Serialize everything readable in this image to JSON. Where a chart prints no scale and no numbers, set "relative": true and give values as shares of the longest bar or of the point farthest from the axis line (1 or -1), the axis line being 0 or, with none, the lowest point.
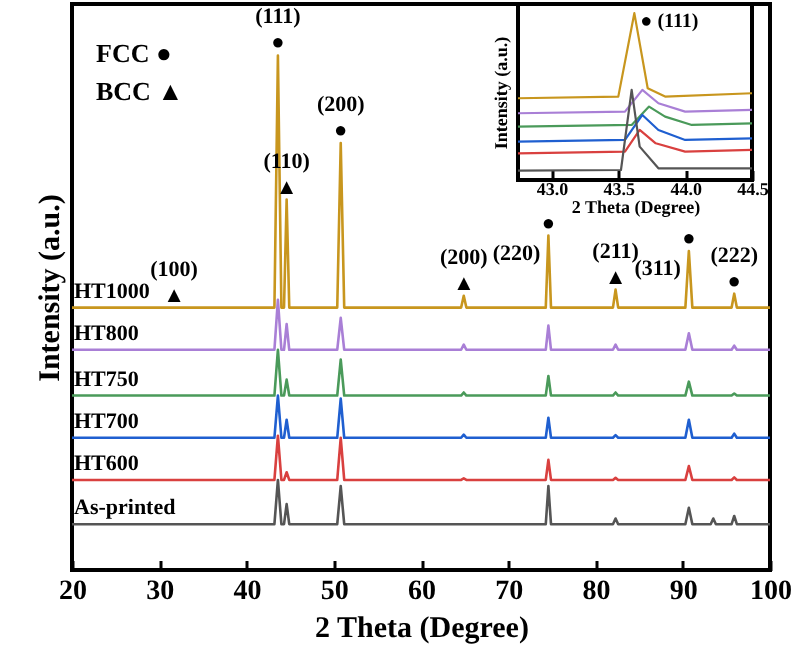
{
  "chart_data": [
    {
      "type": "line",
      "relative": true,
      "xlabel": "2 Theta (Degree)",
      "ylabel": "Intensity (a.u.)",
      "xlim": [
        20,
        100
      ],
      "xticks": [
        20,
        30,
        40,
        50,
        60,
        70,
        80,
        90,
        100
      ],
      "x": [
        20,
        43.2,
        43.6,
        44.0,
        44.3,
        44.6,
        44.9,
        50.4,
        50.8,
        51.2,
        64.6,
        64.9,
        65.2,
        74.3,
        74.6,
        74.9,
        82.0,
        82.3,
        82.6,
        90.3,
        90.7,
        91.1,
        93.2,
        93.5,
        93.8,
        95.6,
        95.9,
        96.2,
        100
      ],
      "series": [
        {
          "name": "HT1000",
          "color": "#c8961e",
          "values": [
            0.51,
            0.51,
            1.0,
            0.51,
            0.51,
            0.72,
            0.51,
            0.51,
            0.83,
            0.51,
            0.51,
            0.533,
            0.51,
            0.51,
            0.65,
            0.51,
            0.51,
            0.545,
            0.51,
            0.51,
            0.62,
            0.51,
            0.51,
            0.51,
            0.51,
            0.51,
            0.537,
            0.51,
            0.51
          ]
        },
        {
          "name": "HT800",
          "color": "#a97fd6",
          "values": [
            0.428,
            0.428,
            0.525,
            0.428,
            0.428,
            0.478,
            0.428,
            0.428,
            0.49,
            0.428,
            0.428,
            0.438,
            0.428,
            0.428,
            0.475,
            0.428,
            0.428,
            0.438,
            0.428,
            0.428,
            0.46,
            0.428,
            0.428,
            0.428,
            0.428,
            0.428,
            0.436,
            0.428,
            0.428
          ]
        },
        {
          "name": "HT750",
          "color": "#4a9a5a",
          "values": [
            0.339,
            0.339,
            0.428,
            0.339,
            0.339,
            0.37,
            0.339,
            0.339,
            0.409,
            0.339,
            0.339,
            0.345,
            0.339,
            0.339,
            0.377,
            0.339,
            0.339,
            0.345,
            0.339,
            0.339,
            0.366,
            0.339,
            0.339,
            0.339,
            0.339,
            0.339,
            0.343,
            0.339,
            0.339
          ]
        },
        {
          "name": "HT700",
          "color": "#1f5fd0",
          "values": [
            0.257,
            0.257,
            0.339,
            0.257,
            0.257,
            0.292,
            0.257,
            0.257,
            0.333,
            0.257,
            0.257,
            0.263,
            0.257,
            0.257,
            0.296,
            0.257,
            0.257,
            0.262,
            0.257,
            0.257,
            0.292,
            0.257,
            0.257,
            0.257,
            0.257,
            0.257,
            0.265,
            0.257,
            0.257
          ]
        },
        {
          "name": "HT600",
          "color": "#d9403f",
          "values": [
            0.175,
            0.175,
            0.261,
            0.175,
            0.175,
            0.19,
            0.175,
            0.175,
            0.257,
            0.175,
            0.175,
            0.178,
            0.175,
            0.175,
            0.214,
            0.175,
            0.175,
            0.179,
            0.175,
            0.175,
            0.202,
            0.175,
            0.175,
            0.175,
            0.175,
            0.175,
            0.18,
            0.175,
            0.175
          ]
        },
        {
          "name": "As-printed",
          "color": "#555555",
          "values": [
            0.089,
            0.089,
            0.175,
            0.089,
            0.089,
            0.128,
            0.089,
            0.089,
            0.163,
            0.089,
            0.089,
            0.089,
            0.089,
            0.089,
            0.163,
            0.089,
            0.089,
            0.1,
            0.089,
            0.089,
            0.121,
            0.089,
            0.089,
            0.1,
            0.089,
            0.089,
            0.105,
            0.089,
            0.089
          ]
        }
      ],
      "annotations": [
        "FCC ●",
        "BCC ▲",
        {
          "text": "●",
          "x": 43.6,
          "y": 1.0
        },
        {
          "text": "(111)",
          "x": 43.6,
          "y": 1.0
        },
        {
          "text": "▲",
          "x": 44.6,
          "y": 0.72
        },
        {
          "text": "(110)",
          "x": 44.6,
          "y": 0.72
        },
        {
          "text": "●",
          "x": 50.8,
          "y": 0.83
        },
        {
          "text": "(200)",
          "x": 50.8,
          "y": 0.83
        },
        {
          "text": "▲",
          "x": 31.7,
          "y": 0.51
        },
        {
          "text": "(100)",
          "x": 31.7,
          "y": 0.51
        },
        {
          "text": "▲",
          "x": 64.9,
          "y": 0.533
        },
        {
          "text": "(200)",
          "x": 64.9,
          "y": 0.533
        },
        {
          "text": "●",
          "x": 74.6,
          "y": 0.65
        },
        {
          "text": "(220)",
          "x": 74.6,
          "y": 0.65
        },
        {
          "text": "▲",
          "x": 82.3,
          "y": 0.545
        },
        {
          "text": "(211)",
          "x": 82.3,
          "y": 0.545
        },
        {
          "text": "●",
          "x": 90.7,
          "y": 0.62
        },
        {
          "text": "(311)",
          "x": 90.7,
          "y": 0.62
        },
        {
          "text": "●",
          "x": 95.9,
          "y": 0.537
        },
        {
          "text": "(222)",
          "x": 95.9,
          "y": 0.537
        }
      ]
    },
    {
      "type": "line",
      "relative": true,
      "xlabel": "2 Theta (Degree)",
      "ylabel": "Intensity (a.u.)",
      "xlim": [
        42.75,
        44.5
      ],
      "xticks": [
        {
          "value": 43,
          "label": "43.0"
        },
        {
          "value": 43.5,
          "label": "43.5"
        },
        {
          "value": 44,
          "label": "44.0"
        },
        {
          "value": 44.5,
          "label": "44.5"
        }
      ],
      "series": [
        {
          "color": "#c8961e",
          "x": [
            42.75,
            43.5,
            43.62,
            43.72,
            43.85,
            44.5
          ],
          "values": [
            0.49,
            0.5,
            1.0,
            0.55,
            0.5,
            0.52
          ]
        },
        {
          "color": "#a97fd6",
          "x": [
            42.75,
            43.55,
            43.68,
            43.8,
            44.0,
            44.5
          ],
          "values": [
            0.4,
            0.41,
            0.54,
            0.46,
            0.41,
            0.42
          ]
        },
        {
          "color": "#4a9a5a",
          "x": [
            42.75,
            43.6,
            43.73,
            43.85,
            44.05,
            44.5
          ],
          "values": [
            0.32,
            0.33,
            0.44,
            0.38,
            0.33,
            0.34
          ]
        },
        {
          "color": "#1f5fd0",
          "x": [
            42.75,
            43.55,
            43.68,
            43.8,
            44.0,
            44.5
          ],
          "values": [
            0.23,
            0.24,
            0.39,
            0.3,
            0.24,
            0.25
          ]
        },
        {
          "color": "#d9403f",
          "x": [
            42.75,
            43.55,
            43.66,
            43.78,
            44.0,
            44.5
          ],
          "values": [
            0.16,
            0.17,
            0.3,
            0.22,
            0.17,
            0.18
          ]
        },
        {
          "color": "#555555",
          "x": [
            42.75,
            43.52,
            43.6,
            43.66,
            43.8,
            44.5
          ],
          "values": [
            0.056,
            0.06,
            0.54,
            0.2,
            0.07,
            0.07
          ]
        }
      ],
      "annotations": [
        {
          "text": "● (111)",
          "x": 43.62,
          "y": 1.0
        }
      ]
    }
  ]
}
